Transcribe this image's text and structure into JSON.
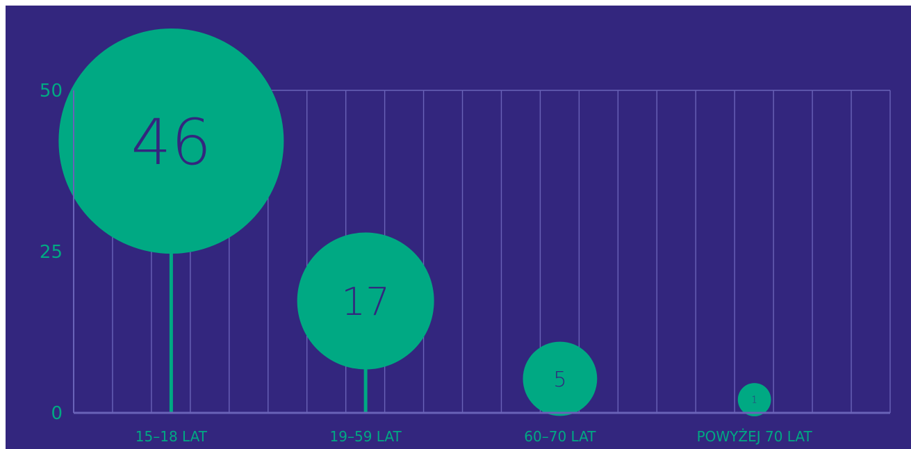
{
  "colors": {
    "background": "#33267e",
    "grid": "#6a63b8",
    "accent": "#00a983",
    "label_inside": "#33267e"
  },
  "chart_data": {
    "type": "lollipop-bubble",
    "title": "",
    "xlabel": "",
    "ylabel": "",
    "ylim": [
      0,
      50
    ],
    "yticks": [
      0,
      25,
      50
    ],
    "grid": true,
    "categories": [
      "15–18 LAT",
      "19–59 LAT",
      "60–70 LAT",
      "POWYŻEJ 70 LAT"
    ],
    "values": [
      46,
      17,
      5,
      1
    ],
    "data_labels": [
      "46",
      "17",
      "5",
      "1"
    ]
  }
}
